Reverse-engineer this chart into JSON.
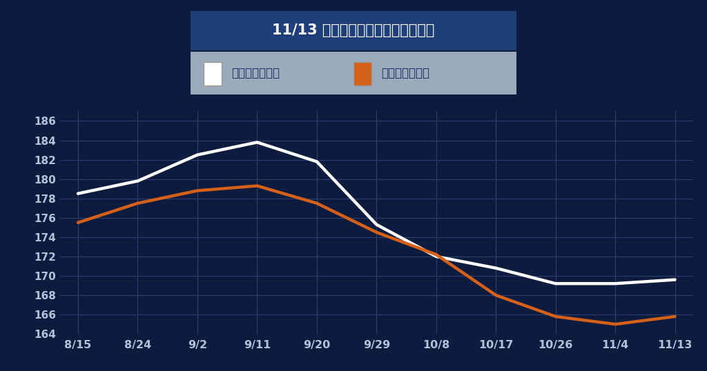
{
  "title": "11/13 全国のガソリン平均価格推移",
  "background_color": "#0d1b3e",
  "plot_bg_color": "#0d1b3e",
  "title_bg_color": "#1e3f7a",
  "legend_bg_color": "#9aabbc",
  "grid_color": "#2a4070",
  "x_labels": [
    "8/15",
    "8/24",
    "9/2",
    "9/11",
    "9/20",
    "9/29",
    "10/8",
    "10/17",
    "10/26",
    "11/4",
    "11/13"
  ],
  "x_values": [
    0,
    1,
    2,
    3,
    4,
    5,
    6,
    7,
    8,
    9,
    10
  ],
  "regular_cash": [
    178.5,
    179.8,
    182.5,
    183.8,
    181.8,
    175.3,
    172.0,
    170.8,
    169.2,
    169.2,
    169.6
  ],
  "regular_member": [
    175.5,
    177.5,
    178.8,
    179.3,
    177.5,
    174.5,
    172.2,
    168.0,
    165.8,
    165.0,
    165.8
  ],
  "ylim": [
    164,
    187
  ],
  "yticks": [
    164,
    166,
    168,
    170,
    172,
    174,
    176,
    178,
    180,
    182,
    184,
    186
  ],
  "cash_color": "#ffffff",
  "member_color": "#d4601a",
  "line_width": 3.2,
  "label_cash": "レギュラー現金",
  "label_member": "レギュラー会員",
  "tick_color": "#b0c4d8",
  "title_text_color": "#ffffff",
  "legend_text_color": "#1a2a5e"
}
